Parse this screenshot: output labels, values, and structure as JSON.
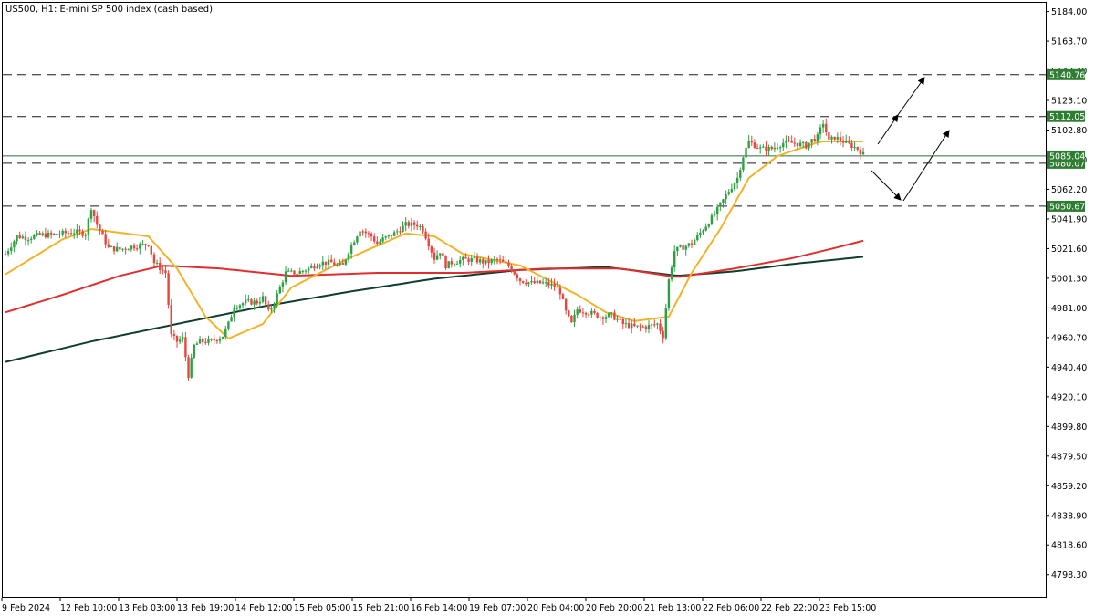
{
  "window": {
    "title": "US500, H1:  E-mini SP 500 index (cash based)"
  },
  "colors": {
    "bull": "#26a69a",
    "bull_body": "#2ea043",
    "bear": "#e8453c",
    "ma_fast": "#f0b429",
    "ma_mid": "#e02e2e",
    "ma_slow": "#0f3d2e",
    "level_line": "#2f6b3a",
    "level_tag_bg": "#2e7d32",
    "current_tag_bg": "#2e7d32",
    "arrow": "#000000"
  },
  "chart_data": {
    "type": "candlestick",
    "title": "US500, H1:  E-mini SP 500 index (cash based)",
    "ylim": [
      4782.5,
      5190
    ],
    "y_ticks": [
      "5184.00",
      "5163.70",
      "5143.40",
      "5123.10",
      "5102.80",
      "5082.50",
      "5062.20",
      "5041.90",
      "5021.60",
      "5001.30",
      "4981.00",
      "4960.70",
      "4940.40",
      "4920.10",
      "4899.80",
      "4879.50",
      "4859.20",
      "4838.90",
      "4818.60",
      "4798.30"
    ],
    "x_ticks": [
      "9 Feb 2024",
      "12 Feb 10:00",
      "13 Feb 03:00",
      "13 Feb 19:00",
      "14 Feb 12:00",
      "15 Feb 05:00",
      "15 Feb 21:00",
      "16 Feb 14:00",
      "19 Feb 07:00",
      "20 Feb 04:00",
      "20 Feb 20:00",
      "21 Feb 13:00",
      "22 Feb 06:00",
      "22 Feb 22:00",
      "23 Feb 15:00"
    ],
    "levels": [
      {
        "value": 5140.76,
        "label": "5140.76",
        "style": "dashed"
      },
      {
        "value": 5112.05,
        "label": "5112.05",
        "style": "dashed"
      },
      {
        "value": 5080.07,
        "label": "5080.07",
        "style": "dashed"
      },
      {
        "value": 5050.67,
        "label": "5050.67",
        "style": "dashed"
      }
    ],
    "current_price": {
      "value": 5085.04,
      "label": "5085.04"
    },
    "close_path": [
      [
        0,
        5018
      ],
      [
        4,
        5030
      ],
      [
        8,
        5029
      ],
      [
        12,
        5031
      ],
      [
        16,
        5031
      ],
      [
        20,
        5032
      ],
      [
        24,
        5033
      ],
      [
        28,
        5032
      ],
      [
        30,
        5050
      ],
      [
        32,
        5038
      ],
      [
        34,
        5030
      ],
      [
        36,
        5022
      ],
      [
        40,
        5021
      ],
      [
        44,
        5023
      ],
      [
        48,
        5024
      ],
      [
        50,
        5025
      ],
      [
        52,
        5012
      ],
      [
        56,
        5005
      ],
      [
        58,
        4962
      ],
      [
        60,
        4958
      ],
      [
        62,
        4960
      ],
      [
        64,
        4935
      ],
      [
        66,
        4955
      ],
      [
        68,
        4958
      ],
      [
        72,
        4958
      ],
      [
        76,
        4962
      ],
      [
        78,
        4970
      ],
      [
        80,
        4982
      ],
      [
        84,
        4985
      ],
      [
        88,
        4985
      ],
      [
        90,
        4988
      ],
      [
        92,
        4978
      ],
      [
        94,
        4985
      ],
      [
        96,
        4995
      ],
      [
        98,
        5005
      ],
      [
        102,
        5005
      ],
      [
        106,
        5008
      ],
      [
        110,
        5012
      ],
      [
        114,
        5012
      ],
      [
        116,
        5010
      ],
      [
        118,
        5010
      ],
      [
        120,
        5020
      ],
      [
        124,
        5035
      ],
      [
        128,
        5030
      ],
      [
        130,
        5025
      ],
      [
        132,
        5028
      ],
      [
        136,
        5032
      ],
      [
        140,
        5038
      ],
      [
        144,
        5038
      ],
      [
        146,
        5035
      ],
      [
        148,
        5025
      ],
      [
        150,
        5015
      ],
      [
        152,
        5020
      ],
      [
        154,
        5010
      ],
      [
        156,
        5012
      ],
      [
        160,
        5014
      ],
      [
        164,
        5014
      ],
      [
        168,
        5012
      ],
      [
        172,
        5014
      ],
      [
        176,
        5010
      ],
      [
        180,
        5000
      ],
      [
        184,
        4998
      ],
      [
        188,
        4998
      ],
      [
        192,
        4996
      ],
      [
        194,
        4992
      ],
      [
        196,
        4978
      ],
      [
        198,
        4970
      ],
      [
        200,
        4980
      ],
      [
        204,
        4978
      ],
      [
        208,
        4975
      ],
      [
        212,
        4976
      ],
      [
        216,
        4970
      ],
      [
        220,
        4968
      ],
      [
        224,
        4968
      ],
      [
        228,
        4970
      ],
      [
        230,
        4962
      ],
      [
        232,
        5000
      ],
      [
        234,
        5020
      ],
      [
        236,
        5022
      ],
      [
        240,
        5025
      ],
      [
        244,
        5035
      ],
      [
        248,
        5045
      ],
      [
        252,
        5058
      ],
      [
        256,
        5070
      ],
      [
        258,
        5085
      ],
      [
        260,
        5095
      ],
      [
        264,
        5090
      ],
      [
        268,
        5090
      ],
      [
        272,
        5094
      ],
      [
        276,
        5094
      ],
      [
        280,
        5092
      ],
      [
        282,
        5096
      ],
      [
        284,
        5098
      ],
      [
        286,
        5108
      ],
      [
        288,
        5095
      ],
      [
        290,
        5098
      ],
      [
        292,
        5096
      ],
      [
        294,
        5094
      ],
      [
        296,
        5092
      ],
      [
        298,
        5090
      ],
      [
        300,
        5086
      ]
    ],
    "ma_fast": [
      [
        0,
        5004
      ],
      [
        20,
        5028
      ],
      [
        30,
        5035
      ],
      [
        50,
        5030
      ],
      [
        60,
        5008
      ],
      [
        70,
        4975
      ],
      [
        78,
        4960
      ],
      [
        90,
        4970
      ],
      [
        100,
        4995
      ],
      [
        120,
        5015
      ],
      [
        140,
        5032
      ],
      [
        150,
        5030
      ],
      [
        160,
        5018
      ],
      [
        180,
        5010
      ],
      [
        200,
        4990
      ],
      [
        210,
        4978
      ],
      [
        220,
        4972
      ],
      [
        232,
        4975
      ],
      [
        240,
        5005
      ],
      [
        250,
        5035
      ],
      [
        260,
        5070
      ],
      [
        270,
        5085
      ],
      [
        285,
        5095
      ],
      [
        300,
        5095
      ]
    ],
    "ma_mid": [
      [
        0,
        4978
      ],
      [
        20,
        4990
      ],
      [
        40,
        5003
      ],
      [
        55,
        5010
      ],
      [
        75,
        5008
      ],
      [
        100,
        5003
      ],
      [
        130,
        5005
      ],
      [
        160,
        5005
      ],
      [
        190,
        5008
      ],
      [
        215,
        5008
      ],
      [
        235,
        5002
      ],
      [
        255,
        5008
      ],
      [
        275,
        5015
      ],
      [
        290,
        5022
      ],
      [
        300,
        5027
      ]
    ],
    "ma_slow": [
      [
        0,
        4944
      ],
      [
        30,
        4958
      ],
      [
        60,
        4970
      ],
      [
        90,
        4982
      ],
      [
        120,
        4992
      ],
      [
        150,
        5001
      ],
      [
        180,
        5007
      ],
      [
        210,
        5009
      ],
      [
        235,
        5003
      ],
      [
        255,
        5006
      ],
      [
        275,
        5011
      ],
      [
        300,
        5016
      ]
    ],
    "x_max": 300
  }
}
